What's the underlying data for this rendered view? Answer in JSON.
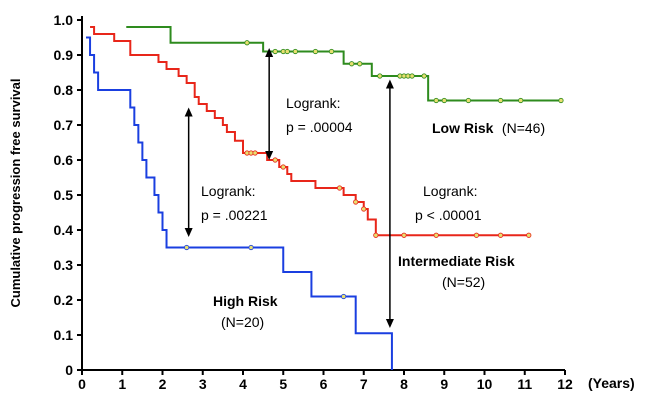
{
  "chart_data": {
    "type": "line",
    "title": "",
    "xlabel": "(Years)",
    "ylabel": "Cumulative progression free survival",
    "xlim": [
      0,
      12
    ],
    "ylim": [
      0,
      1.0
    ],
    "x_ticks": [
      0,
      1,
      2,
      3,
      4,
      5,
      6,
      7,
      8,
      9,
      10,
      11,
      12
    ],
    "y_ticks": [
      0,
      0.1,
      0.2,
      0.3,
      0.4,
      0.5,
      0.6,
      0.7,
      0.8,
      0.9,
      1.0
    ],
    "y_tick_labels": [
      "0",
      "0.1",
      "0.2",
      "0.3",
      "0.4",
      "0.5",
      "0.6",
      "0.7",
      "0.8",
      "0.9",
      "1.0"
    ],
    "grid": false,
    "series": [
      {
        "name": "Low Risk",
        "count_label": "(N=46)",
        "color": "#2e8b1e",
        "steps": [
          [
            1.1,
            0.98
          ],
          [
            2.2,
            0.935
          ],
          [
            4.5,
            0.91
          ],
          [
            6.5,
            0.875
          ],
          [
            7.2,
            0.84
          ],
          [
            8.6,
            0.77
          ],
          [
            11.9,
            0.77
          ]
        ],
        "censored": [
          [
            4.1,
            0.935
          ],
          [
            4.8,
            0.91
          ],
          [
            5.0,
            0.91
          ],
          [
            5.1,
            0.91
          ],
          [
            5.3,
            0.91
          ],
          [
            5.8,
            0.91
          ],
          [
            6.2,
            0.91
          ],
          [
            6.7,
            0.875
          ],
          [
            6.9,
            0.875
          ],
          [
            7.4,
            0.84
          ],
          [
            7.9,
            0.84
          ],
          [
            8.0,
            0.84
          ],
          [
            8.1,
            0.84
          ],
          [
            8.2,
            0.84
          ],
          [
            8.5,
            0.84
          ],
          [
            8.8,
            0.77
          ],
          [
            9.0,
            0.77
          ],
          [
            9.6,
            0.77
          ],
          [
            10.4,
            0.77
          ],
          [
            10.9,
            0.77
          ],
          [
            11.9,
            0.77
          ]
        ]
      },
      {
        "name": "Intermediate Risk",
        "count_label": "(N=52)",
        "color": "#e8261a",
        "steps": [
          [
            0.2,
            0.98
          ],
          [
            0.3,
            0.96
          ],
          [
            0.8,
            0.94
          ],
          [
            1.2,
            0.9
          ],
          [
            1.9,
            0.88
          ],
          [
            2.1,
            0.86
          ],
          [
            2.4,
            0.84
          ],
          [
            2.6,
            0.82
          ],
          [
            2.8,
            0.78
          ],
          [
            2.9,
            0.76
          ],
          [
            3.1,
            0.74
          ],
          [
            3.3,
            0.72
          ],
          [
            3.5,
            0.7
          ],
          [
            3.6,
            0.68
          ],
          [
            3.8,
            0.655
          ],
          [
            4.0,
            0.62
          ],
          [
            4.6,
            0.6
          ],
          [
            4.9,
            0.58
          ],
          [
            5.1,
            0.56
          ],
          [
            5.2,
            0.54
          ],
          [
            5.8,
            0.52
          ],
          [
            6.5,
            0.5
          ],
          [
            6.8,
            0.48
          ],
          [
            7.0,
            0.46
          ],
          [
            7.1,
            0.43
          ],
          [
            7.3,
            0.385
          ],
          [
            11.1,
            0.385
          ]
        ],
        "censored": [
          [
            4.1,
            0.62
          ],
          [
            4.2,
            0.62
          ],
          [
            4.3,
            0.62
          ],
          [
            4.8,
            0.6
          ],
          [
            5.0,
            0.58
          ],
          [
            6.4,
            0.52
          ],
          [
            6.8,
            0.48
          ],
          [
            7.0,
            0.46
          ],
          [
            7.3,
            0.385
          ],
          [
            8.0,
            0.385
          ],
          [
            8.8,
            0.385
          ],
          [
            9.8,
            0.385
          ],
          [
            10.4,
            0.385
          ],
          [
            11.1,
            0.385
          ]
        ]
      },
      {
        "name": "High Risk",
        "count_label": "(N=20)",
        "color": "#1a3fe0",
        "steps": [
          [
            0.1,
            0.95
          ],
          [
            0.2,
            0.9
          ],
          [
            0.3,
            0.85
          ],
          [
            0.4,
            0.8
          ],
          [
            1.2,
            0.75
          ],
          [
            1.3,
            0.7
          ],
          [
            1.4,
            0.65
          ],
          [
            1.5,
            0.6
          ],
          [
            1.6,
            0.55
          ],
          [
            1.8,
            0.5
          ],
          [
            1.9,
            0.45
          ],
          [
            2.0,
            0.4
          ],
          [
            2.1,
            0.35
          ],
          [
            5.0,
            0.28
          ],
          [
            5.7,
            0.21
          ],
          [
            6.8,
            0.105
          ],
          [
            7.7,
            0.0
          ]
        ],
        "censored": [
          [
            2.6,
            0.35
          ],
          [
            4.2,
            0.35
          ],
          [
            6.5,
            0.21
          ]
        ]
      }
    ],
    "comparisons": [
      {
        "label": "Logrank:",
        "value": "p = .00004",
        "arrow_x": 4.65,
        "y_top": 0.92,
        "y_bottom": 0.6
      },
      {
        "label": "Logrank:",
        "value": "p = .00221",
        "arrow_x": 2.65,
        "y_top": 0.75,
        "y_bottom": 0.38
      },
      {
        "label": "Logrank:",
        "value": "p < .00001",
        "arrow_x": 7.65,
        "y_top": 0.83,
        "y_bottom": 0.12
      }
    ]
  }
}
